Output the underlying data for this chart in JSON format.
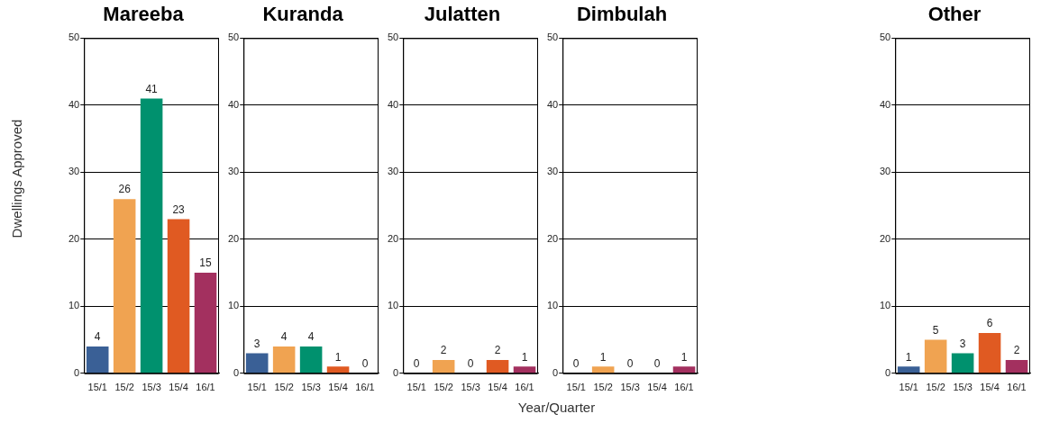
{
  "chart_data": [
    {
      "type": "bar",
      "title": "Mareeba",
      "ylabel": "Dwellings Approved",
      "categories": [
        "15/1",
        "15/2",
        "15/3",
        "15/4",
        "16/1"
      ],
      "values": [
        4,
        26,
        41,
        23,
        15
      ],
      "colors": [
        "#3a6096",
        "#f0a351",
        "#00916e",
        "#e05a22",
        "#a3305f"
      ],
      "ylim": [
        0,
        50
      ],
      "yticks": [
        0,
        10,
        20,
        30,
        40,
        50
      ],
      "grid": "y",
      "data_labels": true
    },
    {
      "type": "bar",
      "title": "Kuranda",
      "categories": [
        "15/1",
        "15/2",
        "15/3",
        "15/4",
        "16/1"
      ],
      "values": [
        3,
        4,
        4,
        1,
        0
      ],
      "colors": [
        "#3a6096",
        "#f0a351",
        "#00916e",
        "#e05a22",
        "#a3305f"
      ],
      "ylim": [
        0,
        50
      ],
      "yticks": [
        0,
        10,
        20,
        30,
        40,
        50
      ],
      "grid": "y",
      "data_labels": true
    },
    {
      "type": "bar",
      "title": "Julatten",
      "xlabel": "Year/Quarter",
      "categories": [
        "15/1",
        "15/2",
        "15/3",
        "15/4",
        "16/1"
      ],
      "values": [
        0,
        2,
        0,
        2,
        1
      ],
      "colors": [
        "#3a6096",
        "#f0a351",
        "#00916e",
        "#e05a22",
        "#a3305f"
      ],
      "ylim": [
        0,
        50
      ],
      "yticks": [
        0,
        10,
        20,
        30,
        40,
        50
      ],
      "grid": "y",
      "data_labels": true
    },
    {
      "type": "bar",
      "title": "Dimbulah",
      "categories": [
        "15/1",
        "15/2",
        "15/3",
        "15/4",
        "16/1"
      ],
      "values": [
        0,
        1,
        0,
        0,
        1
      ],
      "colors": [
        "#3a6096",
        "#f0a351",
        "#00916e",
        "#e05a22",
        "#a3305f"
      ],
      "ylim": [
        0,
        50
      ],
      "yticks": [
        0,
        10,
        20,
        30,
        40,
        50
      ],
      "grid": "y",
      "data_labels": true
    },
    {
      "type": "bar",
      "title": "Other",
      "categories": [
        "15/1",
        "15/2",
        "15/3",
        "15/4",
        "16/1"
      ],
      "values": [
        1,
        5,
        3,
        6,
        2
      ],
      "colors": [
        "#3a6096",
        "#f0a351",
        "#00916e",
        "#e05a22",
        "#a3305f"
      ],
      "ylim": [
        0,
        50
      ],
      "yticks": [
        0,
        10,
        20,
        30,
        40,
        50
      ],
      "grid": "y",
      "data_labels": true
    }
  ]
}
